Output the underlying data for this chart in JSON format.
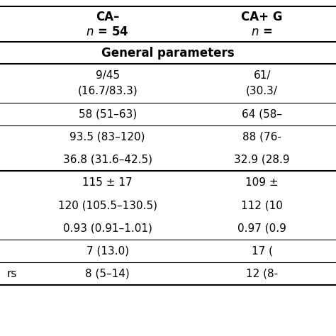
{
  "col1_header": "CA–",
  "col1_subheader": "n = 54",
  "col2_header": "CA+ G",
  "col2_subheader": "n =",
  "section_header": "General parameters",
  "rows": [
    [
      "9/45\n(16.7/83.3)",
      "61/\n(30.3/"
    ],
    [
      "58 (51–63)",
      "64 (58–"
    ],
    [
      "93.5 (83–120)",
      "88 (76-"
    ],
    [
      "36.8 (31.6–42.5)",
      "32.9 (28.9"
    ],
    [
      "115 ± 17",
      "109 ±"
    ],
    [
      "120 (105.5–130.5)",
      "112 (10"
    ],
    [
      "0.93 (0.91–1.01)",
      "0.97 (0.9"
    ],
    [
      "7 (13.0)",
      "17 ("
    ],
    [
      "8 (5–14)",
      "12 (8-"
    ]
  ],
  "last_row_left_text": "rs",
  "bg_color": "#ffffff",
  "text_color": "#000000",
  "line_color": "#000000",
  "font_size": 11,
  "header_font_size": 12
}
